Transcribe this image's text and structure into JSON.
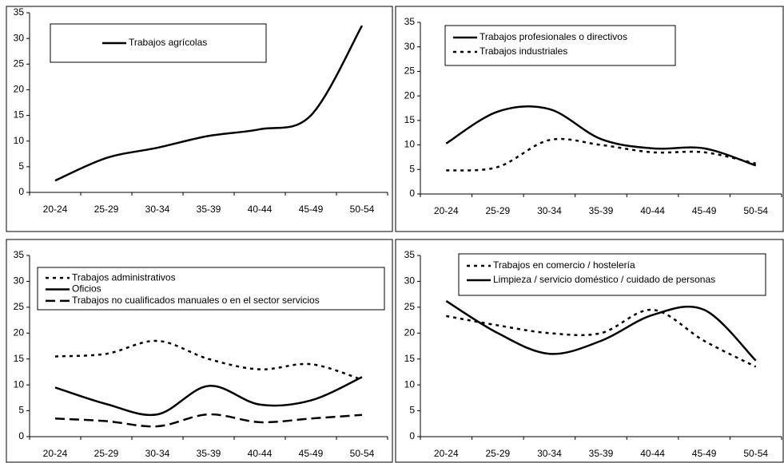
{
  "chart_data": [
    {
      "type": "line",
      "categories": [
        "20-24",
        "25-29",
        "30-34",
        "35-39",
        "40-44",
        "45-49",
        "50-54"
      ],
      "series": [
        {
          "name": "Trabajos agrícolas",
          "color": "#000000",
          "dash": "solid",
          "values": [
            2.3,
            6.7,
            8.7,
            11,
            12.3,
            15,
            32.5
          ]
        }
      ],
      "ylim": [
        0,
        35
      ],
      "yticks": [
        0,
        5,
        10,
        15,
        20,
        25,
        30,
        35
      ],
      "legend": "upper left"
    },
    {
      "type": "line",
      "categories": [
        "20-24",
        "25-29",
        "30-34",
        "35-39",
        "40-44",
        "45-49",
        "50-54"
      ],
      "series": [
        {
          "name": "Trabajos profesionales o directivos",
          "color": "#000000",
          "dash": "solid",
          "values": [
            10.3,
            16.8,
            17.3,
            11.2,
            9.3,
            9.3,
            5.8
          ]
        },
        {
          "name": "Trabajos industriales",
          "color": "#000000",
          "dash": "dotted",
          "values": [
            4.8,
            5.5,
            11,
            10,
            8.5,
            8.5,
            6.2
          ]
        }
      ],
      "ylim": [
        0,
        35
      ],
      "yticks": [
        0,
        5,
        10,
        15,
        20,
        25,
        30,
        35
      ],
      "legend": "upper left"
    },
    {
      "type": "line",
      "categories": [
        "20-24",
        "25-29",
        "30-34",
        "35-39",
        "40-44",
        "45-49",
        "50-54"
      ],
      "series": [
        {
          "name": "Trabajos administrativos",
          "color": "#000000",
          "dash": "dotted",
          "values": [
            15.5,
            16,
            18.5,
            15,
            13,
            14,
            11
          ]
        },
        {
          "name": "Oficios",
          "color": "#000000",
          "dash": "solid",
          "values": [
            9.5,
            6.3,
            4.3,
            9.8,
            6.2,
            7,
            11.5
          ]
        },
        {
          "name": "Trabajos no cualificados manuales o en el sector servicios",
          "color": "#000000",
          "dash": "dashed",
          "values": [
            3.5,
            3,
            2,
            4.3,
            2.8,
            3.5,
            4.2
          ]
        }
      ],
      "ylim": [
        0,
        35
      ],
      "yticks": [
        0,
        5,
        10,
        15,
        20,
        25,
        30,
        35
      ],
      "legend": "upper left"
    },
    {
      "type": "line",
      "categories": [
        "20-24",
        "25-29",
        "30-34",
        "35-39",
        "40-44",
        "45-49",
        "50-54"
      ],
      "series": [
        {
          "name": "Trabajos en comercio / hostelería",
          "color": "#000000",
          "dash": "dotted",
          "values": [
            23.3,
            21.5,
            20,
            20,
            24.5,
            18.5,
            13.5
          ]
        },
        {
          "name": "Limpieza / servicio doméstico / cuidado de personas",
          "color": "#000000",
          "dash": "solid",
          "values": [
            26.2,
            20,
            16,
            18.5,
            23.5,
            24.5,
            14.7
          ]
        }
      ],
      "ylim": [
        0,
        35
      ],
      "yticks": [
        0,
        5,
        10,
        15,
        20,
        25,
        30,
        35
      ],
      "legend": "upper left"
    }
  ]
}
